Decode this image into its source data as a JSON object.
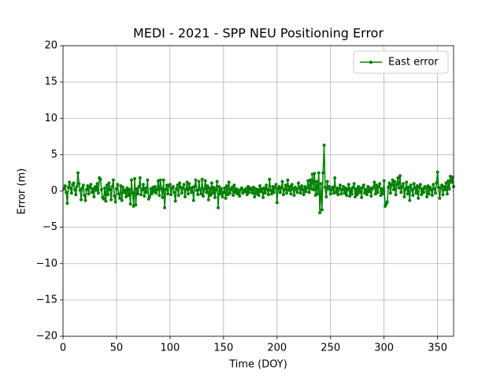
{
  "chart_data": {
    "type": "line",
    "title": "MEDI - 2021 - SPP NEU Positioning Error",
    "xlabel": "Time (DOY)",
    "ylabel": "Error (m)",
    "xlim": [
      0,
      365
    ],
    "ylim": [
      -20,
      20
    ],
    "xticks": [
      0,
      50,
      100,
      150,
      200,
      250,
      300,
      350
    ],
    "yticks": [
      {
        "value": -20,
        "label": "−20"
      },
      {
        "value": -15,
        "label": "−15"
      },
      {
        "value": -10,
        "label": "−10"
      },
      {
        "value": -5,
        "label": "−5"
      },
      0,
      5,
      10,
      15,
      20
    ],
    "grid": true,
    "legend": "upper right",
    "x": [
      1,
      2,
      3,
      4,
      5,
      6,
      7,
      8,
      9,
      10,
      11,
      12,
      13,
      14,
      15,
      16,
      17,
      18,
      19,
      20,
      21,
      22,
      23,
      24,
      25,
      26,
      27,
      28,
      29,
      30,
      31,
      32,
      33,
      34,
      35,
      36,
      37,
      38,
      39,
      40,
      41,
      42,
      43,
      44,
      45,
      46,
      47,
      48,
      49,
      50,
      51,
      52,
      53,
      54,
      55,
      56,
      57,
      58,
      59,
      60,
      61,
      62,
      63,
      64,
      65,
      66,
      67,
      68,
      69,
      70,
      71,
      72,
      73,
      74,
      75,
      76,
      77,
      78,
      79,
      80,
      81,
      82,
      83,
      84,
      85,
      86,
      87,
      88,
      89,
      90,
      91,
      92,
      93,
      94,
      95,
      96,
      97,
      98,
      99,
      100,
      101,
      102,
      103,
      104,
      105,
      106,
      107,
      108,
      109,
      110,
      111,
      112,
      113,
      114,
      115,
      116,
      117,
      118,
      119,
      120,
      121,
      122,
      123,
      124,
      125,
      126,
      127,
      128,
      129,
      130,
      131,
      132,
      133,
      134,
      135,
      136,
      137,
      138,
      139,
      140,
      141,
      142,
      143,
      144,
      145,
      146,
      147,
      148,
      149,
      150,
      151,
      152,
      153,
      154,
      155,
      156,
      157,
      158,
      159,
      160,
      161,
      162,
      163,
      164,
      165,
      166,
      167,
      168,
      169,
      170,
      171,
      172,
      173,
      174,
      175,
      176,
      177,
      178,
      179,
      180,
      181,
      182,
      183,
      184,
      185,
      186,
      187,
      188,
      189,
      190,
      191,
      192,
      193,
      194,
      195,
      196,
      197,
      198,
      199,
      200,
      201,
      202,
      203,
      204,
      205,
      206,
      207,
      208,
      209,
      210,
      211,
      212,
      213,
      214,
      215,
      216,
      217,
      218,
      219,
      220,
      221,
      222,
      223,
      224,
      225,
      226,
      227,
      228,
      229,
      230,
      231,
      232,
      233,
      234,
      235,
      236,
      237,
      238,
      239,
      240,
      241,
      242,
      243,
      244,
      245,
      246,
      247,
      248,
      249,
      250,
      251,
      252,
      253,
      254,
      255,
      256,
      257,
      258,
      259,
      260,
      261,
      262,
      263,
      264,
      265,
      266,
      267,
      268,
      269,
      270,
      271,
      272,
      273,
      274,
      275,
      276,
      277,
      278,
      279,
      280,
      281,
      282,
      283,
      284,
      285,
      286,
      287,
      288,
      289,
      290,
      291,
      292,
      293,
      294,
      295,
      296,
      297,
      298,
      299,
      300,
      301,
      302,
      303,
      304,
      305,
      306,
      307,
      308,
      309,
      310,
      311,
      312,
      313,
      314,
      315,
      316,
      317,
      318,
      319,
      320,
      321,
      322,
      323,
      324,
      325,
      326,
      327,
      328,
      329,
      330,
      331,
      332,
      333,
      334,
      335,
      336,
      337,
      338,
      339,
      340,
      341,
      342,
      343,
      344,
      345,
      346,
      347,
      348,
      349,
      350,
      351,
      352,
      353,
      354,
      355,
      356,
      357,
      358,
      359,
      360,
      361,
      362,
      363,
      364,
      365
    ],
    "series": [
      {
        "name": "East error",
        "color": "#008000",
        "values": [
          0.3,
          0.7,
          -0.2,
          -1.7,
          0.5,
          1.2,
          0.4,
          -0.3,
          0.9,
          1.1,
          0.2,
          -0.5,
          0.6,
          2.5,
          1.0,
          0.1,
          -1.2,
          0.4,
          0.8,
          -0.6,
          -1.3,
          0.2,
          0.7,
          -0.4,
          0.5,
          0.9,
          -0.2,
          0.3,
          -0.8,
          0.6,
          0.1,
          1.0,
          -0.3,
          1.8,
          1.6,
          0.2,
          -0.9,
          -1.1,
          0.4,
          -1.4,
          0.8,
          -0.5,
          1.1,
          0.2,
          -1.2,
          0.6,
          1.5,
          -0.7,
          -1.5,
          0.3,
          0.9,
          -0.4,
          -1.0,
          0.7,
          -1.3,
          0.5,
          -0.2,
          0.1,
          -0.8,
          0.4,
          -0.6,
          0.2,
          -1.8,
          1.5,
          -0.3,
          -2.1,
          1.7,
          -1.9,
          0.3,
          -0.4,
          0.6,
          1.8,
          -0.5,
          0.2,
          0.9,
          -0.7,
          0.4,
          -0.2,
          1.5,
          -1.1,
          -0.8,
          0.3,
          -0.4,
          0.5,
          -0.1,
          0.6,
          -0.3,
          0.2,
          1.4,
          -0.6,
          1.5,
          0.3,
          -0.9,
          1.5,
          -2.3,
          0.2,
          0.8,
          -0.4,
          0.7,
          0.9,
          -0.5,
          0.4,
          0.6,
          -0.2,
          -1.4,
          0.3,
          0.8,
          -0.6,
          1.1,
          0.5,
          -0.3,
          0.4,
          0.9,
          -0.8,
          0.2,
          1.2,
          -0.4,
          1.0,
          0.3,
          -0.2,
          0.5,
          -1.3,
          0.6,
          1.5,
          0.1,
          -0.5,
          1.3,
          0.2,
          -0.4,
          1.6,
          -0.7,
          0.3,
          1.4,
          -0.2,
          0.7,
          -1.2,
          0.4,
          -0.6,
          1.1,
          -0.3,
          0.5,
          -0.9,
          0.2,
          1.3,
          -2.3,
          0.6,
          -0.4,
          0.3,
          -0.8,
          -0.2,
          0.4,
          -1.0,
          0.7,
          -0.5,
          1.2,
          -0.3,
          0.2,
          0.5,
          -0.6,
          0.8,
          -0.2,
          0.3,
          -0.4,
          0.1,
          -0.7,
          0.2,
          0.4,
          -0.3,
          0.1,
          -0.1,
          0.3,
          -0.5,
          0.6,
          -0.2,
          0.4,
          0.2,
          -0.3,
          0.5,
          -0.8,
          0.3,
          -0.4,
          0.2,
          -0.6,
          0.7,
          -0.1,
          0.3,
          -0.9,
          0.4,
          -0.3,
          0.8,
          0.2,
          -0.5,
          1.6,
          0.1,
          -0.4,
          0.6,
          -0.2,
          0.5,
          0.9,
          -1.6,
          0.3,
          0.6,
          -0.2,
          0.4,
          1.3,
          -0.5,
          0.2,
          0.8,
          -0.3,
          1.5,
          0.1,
          0.6,
          -0.4,
          0.9,
          0.3,
          -0.6,
          0.5,
          0.2,
          -0.2,
          1.1,
          0.4,
          -0.3,
          0.7,
          0.2,
          -0.5,
          0.6,
          -0.1,
          0.4,
          1.4,
          -0.2,
          1.5,
          0.3,
          2.3,
          0.2,
          2.4,
          -0.6,
          1.3,
          -0.4,
          2.5,
          -3.0,
          1.0,
          -2.6,
          2.5,
          6.3,
          0.5,
          -0.8,
          1.3,
          0.3,
          0.6,
          -0.4,
          0.2,
          0.5,
          -0.3,
          1.8,
          -0.2,
          0.4,
          -0.5,
          0.3,
          0.8,
          -0.4,
          0.2,
          0.6,
          -0.3,
          0.4,
          -0.6,
          0.2,
          0.9,
          -0.7,
          0.3,
          -0.4,
          0.5,
          1.0,
          -0.8,
          0.3,
          -0.5,
          0.6,
          -0.2,
          0.4,
          -0.9,
          0.5,
          0.8,
          -0.3,
          0.2,
          -0.5,
          0.6,
          -0.1,
          0.4,
          -0.7,
          0.3,
          0.5,
          1.2,
          -0.4,
          0.8,
          -0.2,
          0.6,
          1.0,
          -0.6,
          0.3,
          -0.4,
          1.4,
          -2.1,
          -1.8,
          -1.5,
          0.5,
          1.1,
          -0.3,
          0.8,
          1.5,
          0.2,
          1.3,
          -0.5,
          0.9,
          1.8,
          0.4,
          2.1,
          -0.2,
          0.6,
          1.0,
          -0.8,
          0.3,
          1.2,
          -0.4,
          0.5,
          -1.3,
          0.8,
          0.2,
          -0.6,
          1.0,
          0.4,
          -0.3,
          0.7,
          -1.0,
          0.5,
          0.9,
          -0.5,
          0.3,
          -0.2,
          0.6,
          0.4,
          -0.8,
          0.7,
          -0.4,
          0.5,
          0.2,
          -0.6,
          0.9,
          0.3,
          -0.3,
          1.1,
          2.6,
          0.5,
          -1.0,
          0.4,
          0.8,
          -0.5,
          0.6,
          0.2,
          1.1,
          -0.4,
          1.4,
          0.3,
          2.0,
          1.2,
          1.9,
          0.6
        ]
      }
    ]
  }
}
